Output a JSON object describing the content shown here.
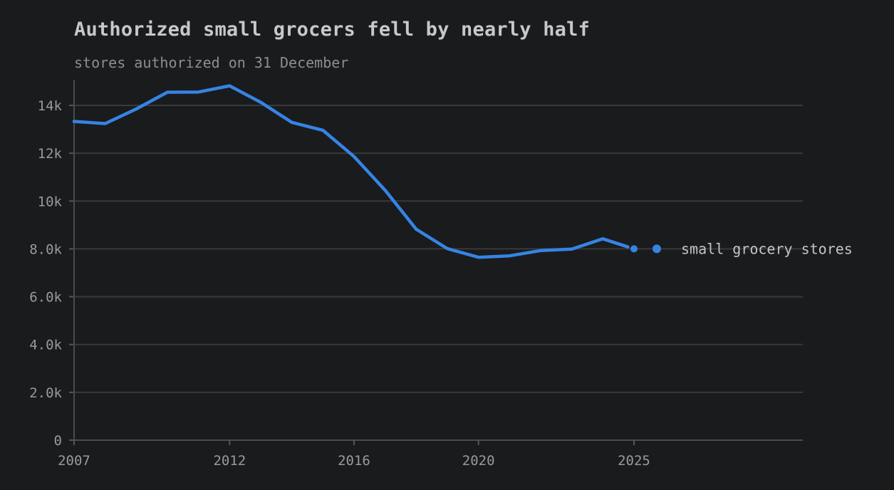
{
  "chart_data": {
    "type": "line",
    "title": "Authorized small grocers fell by nearly half",
    "subtitle": "stores authorized on 31 December",
    "xlabel": "",
    "ylabel": "",
    "xlim": [
      2007,
      2025
    ],
    "ylim": [
      0,
      15000
    ],
    "grid": true,
    "x_ticks": [
      {
        "value": 2007,
        "label": "2007"
      },
      {
        "value": 2012,
        "label": "2012"
      },
      {
        "value": 2016,
        "label": "2016"
      },
      {
        "value": 2020,
        "label": "2020"
      },
      {
        "value": 2025,
        "label": "2025"
      }
    ],
    "y_ticks": [
      {
        "value": 0,
        "label": "0"
      },
      {
        "value": 2000,
        "label": "2.0k"
      },
      {
        "value": 4000,
        "label": "4.0k"
      },
      {
        "value": 6000,
        "label": "6.0k"
      },
      {
        "value": 8000,
        "label": "8.0k"
      },
      {
        "value": 10000,
        "label": "10k"
      },
      {
        "value": 12000,
        "label": "12k"
      },
      {
        "value": 14000,
        "label": "14k"
      }
    ],
    "series": [
      {
        "name": "small grocery stores",
        "color": "#3584e4",
        "x": [
          2007,
          2008,
          2009,
          2010,
          2011,
          2012,
          2013,
          2014,
          2015,
          2016,
          2017,
          2018,
          2019,
          2020,
          2021,
          2022,
          2023,
          2024,
          2025
        ],
        "values": [
          13330,
          13240,
          13850,
          14550,
          14560,
          14820,
          14130,
          13290,
          12960,
          11860,
          10450,
          8820,
          8010,
          7650,
          7710,
          7930,
          7990,
          8420,
          8000
        ]
      }
    ],
    "legend_position": "right"
  }
}
